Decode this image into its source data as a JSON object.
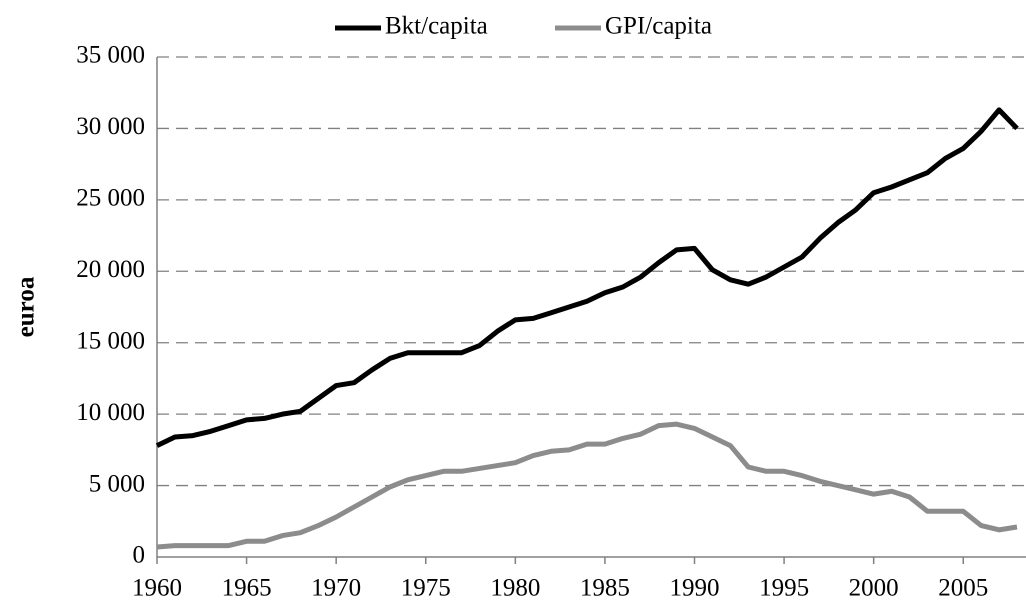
{
  "chart_data": {
    "type": "line",
    "y_label": "euroa",
    "x": [
      1960,
      1961,
      1962,
      1963,
      1964,
      1965,
      1966,
      1967,
      1968,
      1969,
      1970,
      1971,
      1972,
      1973,
      1974,
      1975,
      1976,
      1977,
      1978,
      1979,
      1980,
      1981,
      1982,
      1983,
      1984,
      1985,
      1986,
      1987,
      1988,
      1989,
      1990,
      1991,
      1992,
      1993,
      1994,
      1995,
      1996,
      1997,
      1998,
      1999,
      2000,
      2001,
      2002,
      2003,
      2004,
      2005,
      2006,
      2007,
      2008
    ],
    "series": [
      {
        "name": "Bkt/capita",
        "color": "#000000",
        "values": [
          7800,
          8400,
          8500,
          8800,
          9200,
          9600,
          9700,
          10000,
          10200,
          11100,
          12000,
          12200,
          13100,
          13900,
          14300,
          14300,
          14300,
          14300,
          14800,
          15800,
          16600,
          16700,
          17100,
          17500,
          17900,
          18500,
          18900,
          19600,
          20600,
          21500,
          21600,
          20100,
          19400,
          19100,
          19600,
          20300,
          21000,
          22300,
          23400,
          24300,
          25500,
          25900,
          26400,
          26900,
          27900,
          28600,
          29800,
          31300,
          30000
        ]
      },
      {
        "name": "GPI/capita",
        "color": "#8c8c8c",
        "values": [
          700,
          800,
          800,
          800,
          800,
          1100,
          1100,
          1500,
          1700,
          2200,
          2800,
          3500,
          4200,
          4900,
          5400,
          5700,
          6000,
          6000,
          6200,
          6400,
          6600,
          7100,
          7400,
          7500,
          7900,
          7900,
          8300,
          8600,
          9200,
          9300,
          9000,
          8400,
          7800,
          6300,
          6000,
          6000,
          5700,
          5300,
          5000,
          4700,
          4400,
          4600,
          4200,
          3200,
          3200,
          3200,
          2200,
          1900,
          2100
        ]
      }
    ],
    "xlim": [
      1960,
      2008
    ],
    "xticks": [
      1960,
      1965,
      1970,
      1975,
      1980,
      1985,
      1990,
      1995,
      2000,
      2005
    ],
    "ylim": [
      0,
      35000
    ],
    "yticks": [
      0,
      {
        "value": 5000,
        "label": "5 000"
      },
      {
        "value": 10000,
        "label": "10 000"
      },
      {
        "value": 15000,
        "label": "15 000"
      },
      {
        "value": 20000,
        "label": "20 000"
      },
      {
        "value": 25000,
        "label": "25 000"
      },
      {
        "value": 30000,
        "label": "30 000"
      },
      {
        "value": 35000,
        "label": "35 000"
      }
    ],
    "grid": true,
    "legend": "top"
  }
}
